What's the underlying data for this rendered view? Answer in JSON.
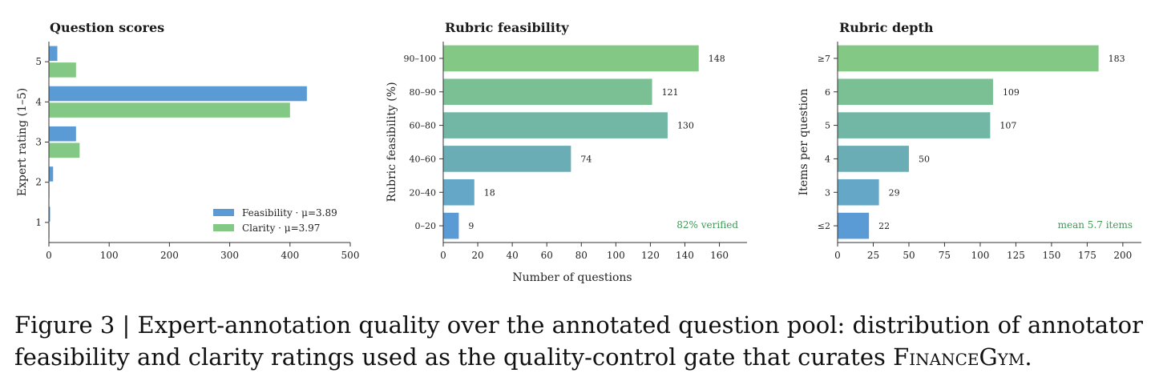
{
  "chart_data": [
    {
      "type": "bar",
      "orientation": "horizontal",
      "title": "Question scores",
      "xlabel": "",
      "ylabel": "Expert rating (1–5)",
      "categories": [
        "1",
        "2",
        "3",
        "4",
        "5"
      ],
      "series": [
        {
          "name": "Feasibility · μ=3.89",
          "color": "#5b9bd5",
          "values": [
            2,
            7,
            45,
            428,
            14
          ]
        },
        {
          "name": "Clarity · μ=3.97",
          "color": "#84c885",
          "values": [
            1,
            1,
            51,
            400,
            45
          ]
        }
      ],
      "xlim": [
        0,
        500
      ],
      "xticks": [
        "0",
        "100",
        "200",
        "300",
        "400",
        "500"
      ],
      "grid": false,
      "legend": "bottom-right"
    },
    {
      "type": "bar",
      "orientation": "horizontal",
      "title": "Rubric feasibility",
      "xlabel": "Number of questions",
      "ylabel": "Rubric feasibility (%)",
      "categories": [
        "0–20",
        "20–40",
        "40–60",
        "60–80",
        "80–90",
        "90–100"
      ],
      "values": [
        9,
        18,
        74,
        130,
        121,
        148
      ],
      "data_labels": [
        "9",
        "18",
        "74",
        "130",
        "121",
        "148"
      ],
      "colors": [
        "#5b9bd5",
        "#64a7c7",
        "#6aadb5",
        "#72b7a6",
        "#7bc094",
        "#84c885"
      ],
      "xlim": [
        0,
        176
      ],
      "xticks": [
        "0",
        "20",
        "40",
        "60",
        "80",
        "100",
        "120",
        "140",
        "160"
      ],
      "annotation": "82% verified",
      "annotation_color": "#3e9a55",
      "grid": false
    },
    {
      "type": "bar",
      "orientation": "horizontal",
      "title": "Rubric depth",
      "xlabel": "",
      "ylabel": "Items per question",
      "categories": [
        "≤2",
        "3",
        "4",
        "5",
        "6",
        "≥7"
      ],
      "values": [
        22,
        29,
        50,
        107,
        109,
        183
      ],
      "data_labels": [
        "22",
        "29",
        "50",
        "107",
        "109",
        "183"
      ],
      "colors": [
        "#5b9bd5",
        "#64a7c7",
        "#6aadb5",
        "#72b7a6",
        "#7bc094",
        "#84c885"
      ],
      "xlim": [
        0,
        213
      ],
      "xticks": [
        "0",
        "25",
        "50",
        "75",
        "100",
        "125",
        "150",
        "175",
        "200"
      ],
      "annotation": "mean 5.7 items",
      "annotation_color": "#3e9a55",
      "grid": false
    }
  ],
  "caption": {
    "prefix": "Figure 3 | Expert-annotation quality over the annotated question pool: distribution of annotator feasibility and clarity ratings used as the quality-control gate that curates ",
    "name": "FinanceGym",
    "suffix": "."
  }
}
